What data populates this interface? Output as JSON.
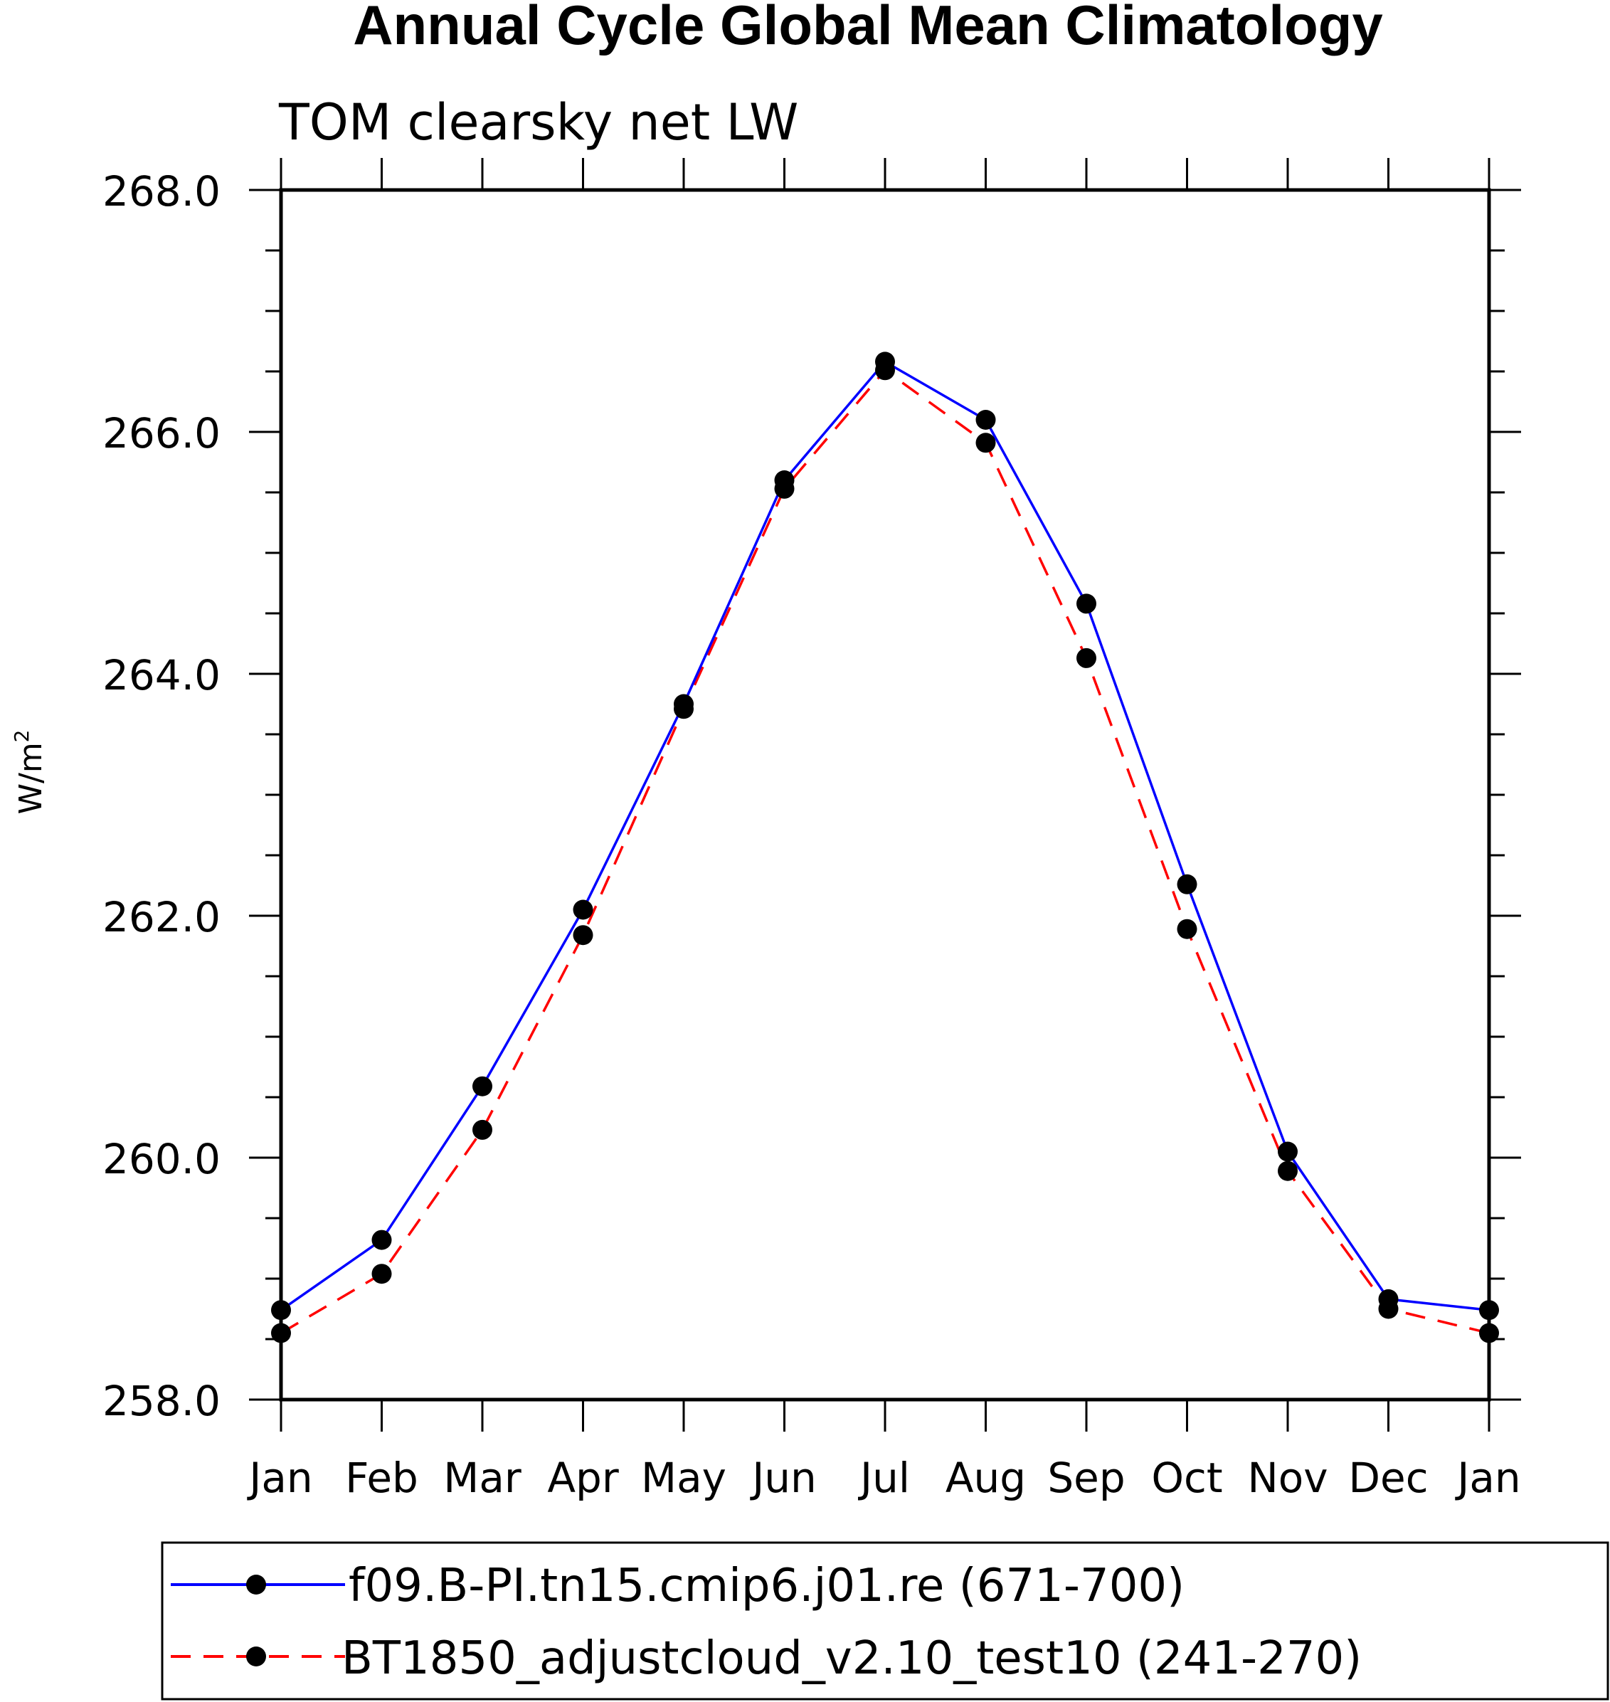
{
  "chart_data": {
    "type": "line",
    "title": "Annual Cycle Global Mean Climatology",
    "subtitle": "TOM clearsky net LW",
    "ylabel": "W/m",
    "ylabel_superscript": "2",
    "ylim": [
      258.0,
      268.0
    ],
    "yticks": [
      "258.0",
      "260.0",
      "262.0",
      "264.0",
      "266.0",
      "268.0"
    ],
    "categories": [
      "Jan",
      "Feb",
      "Mar",
      "Apr",
      "May",
      "Jun",
      "Jul",
      "Aug",
      "Sep",
      "Oct",
      "Nov",
      "Dec",
      "Jan"
    ],
    "series": [
      {
        "name": "f09.B-PI.tn15.cmip6.j01.re (671-700)",
        "color": "#0000ff",
        "style": "solid",
        "values": [
          258.74,
          259.32,
          260.59,
          262.05,
          263.75,
          265.6,
          266.58,
          266.1,
          264.58,
          262.26,
          260.05,
          258.83,
          258.74
        ]
      },
      {
        "name": "BT1850_adjustcloud_v2.10_test10 (241-270)",
        "color": "#ff0000",
        "style": "dashed",
        "values": [
          258.55,
          259.04,
          260.23,
          261.84,
          263.71,
          265.53,
          266.51,
          265.91,
          264.13,
          261.89,
          259.89,
          258.75,
          258.55
        ]
      }
    ],
    "legend_position": "bottom"
  }
}
